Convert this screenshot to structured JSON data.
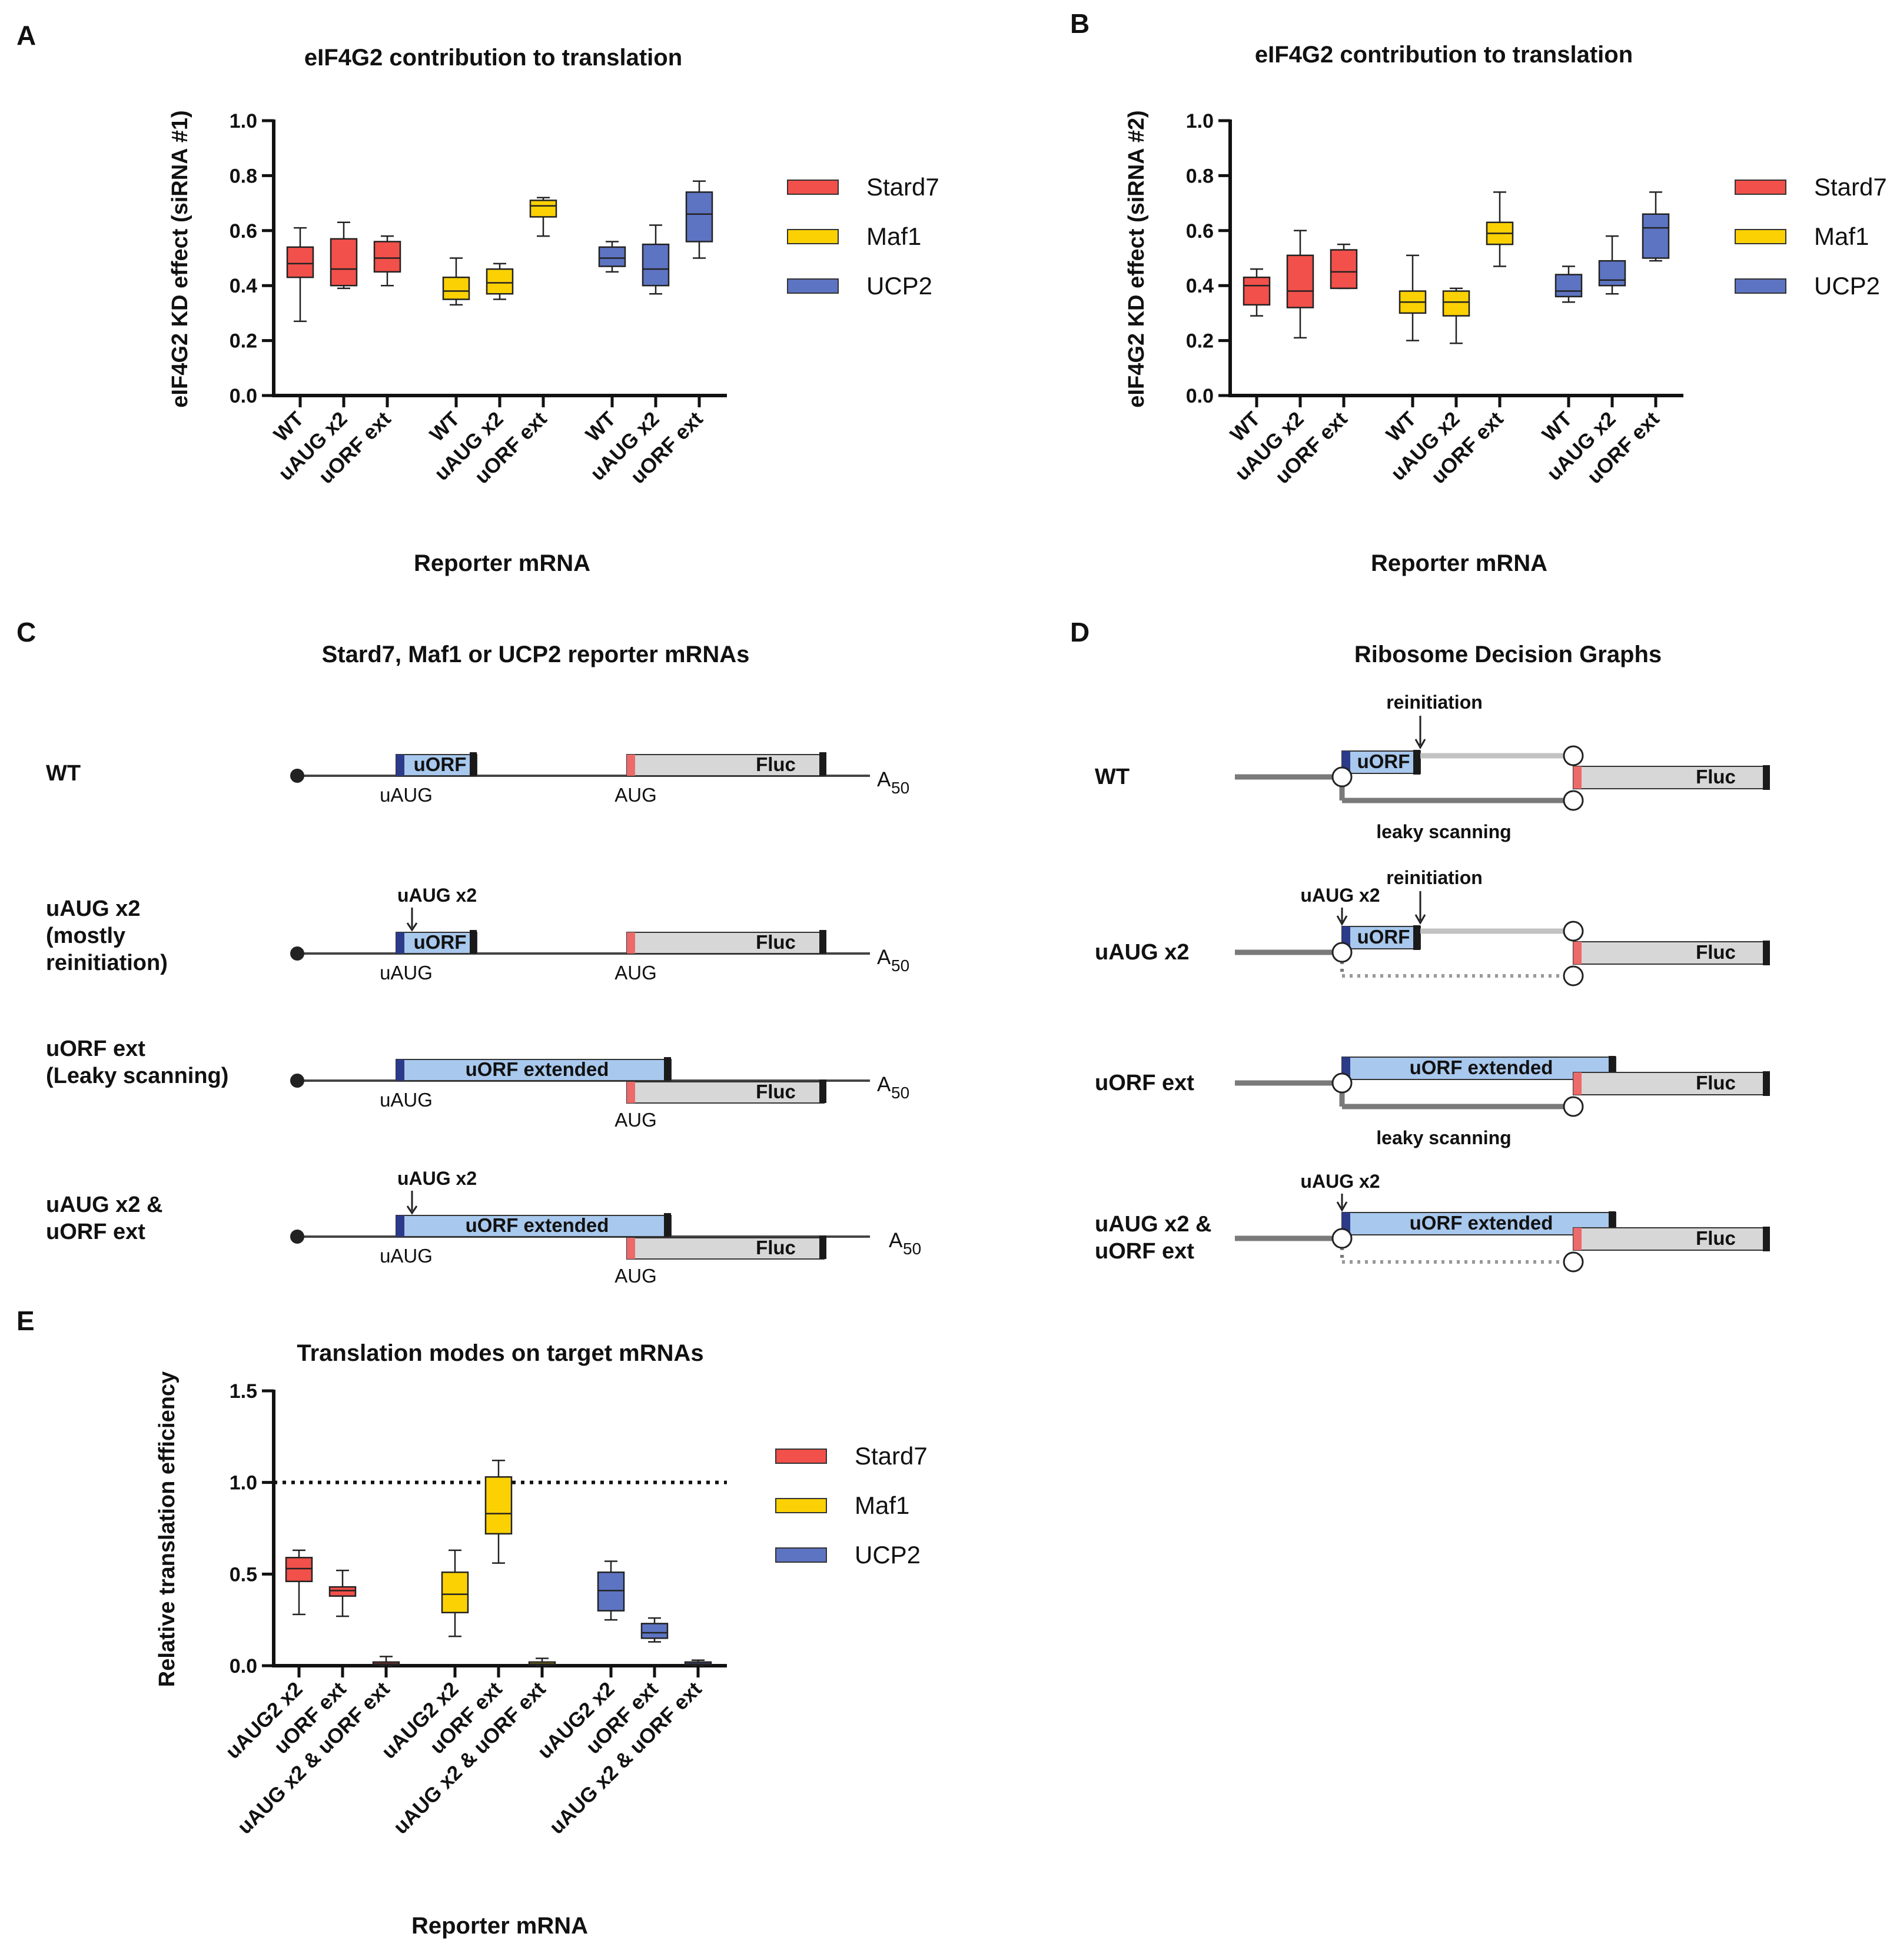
{
  "colors": {
    "Stard7": "#f2504a",
    "Maf1": "#fbd104",
    "UCP2": "#5d74c2",
    "uorf_fill": "#a8c8ed",
    "uorf_start": "#2c3a8a",
    "fluc_fill": "#d7d7d7",
    "aug_mark": "#ec6a6a",
    "stop_mark": "#1a1a1a",
    "line": "#444444",
    "graph_line": "#7a7a7a",
    "graph_light": "#c2c2c2"
  },
  "legend": [
    "Stard7",
    "Maf1",
    "UCP2"
  ],
  "panels": {
    "A": {
      "letter": "A",
      "title": "eIF4G2 contribution to translation",
      "xlabel": "Reporter mRNA"
    },
    "B": {
      "letter": "B",
      "title": "eIF4G2 contribution to translation",
      "xlabel": "Reporter mRNA"
    },
    "C": {
      "letter": "C",
      "title": "Stard7, Maf1 or UCP2 reporter mRNAs"
    },
    "D": {
      "letter": "D",
      "title": "Ribosome Decision Graphs"
    },
    "E": {
      "letter": "E",
      "title": "Translation modes on target mRNAs",
      "xlabel": "Reporter mRNA"
    }
  },
  "chart_data": [
    {
      "panel": "A",
      "type": "box",
      "title": "eIF4G2 contribution to translation",
      "xlabel": "Reporter mRNA",
      "ylabel": "eIF4G2 KD effect (siRNA #1)",
      "ylim": [
        0,
        1.0
      ],
      "yticks": [
        "0.0",
        "0.2",
        "0.4",
        "0.6",
        "0.8",
        "1.0"
      ],
      "groups": [
        {
          "name": "Stard7",
          "categories": [
            "WT",
            "uAUG x2",
            "uORF ext"
          ],
          "boxes": [
            [
              0.27,
              0.43,
              0.48,
              0.54,
              0.61
            ],
            [
              0.39,
              0.4,
              0.46,
              0.57,
              0.63
            ],
            [
              0.4,
              0.45,
              0.5,
              0.56,
              0.58
            ]
          ]
        },
        {
          "name": "Maf1",
          "categories": [
            "WT",
            "uAUG x2",
            "uORF ext"
          ],
          "boxes": [
            [
              0.33,
              0.35,
              0.38,
              0.43,
              0.5
            ],
            [
              0.35,
              0.37,
              0.41,
              0.46,
              0.48
            ],
            [
              0.58,
              0.65,
              0.69,
              0.71,
              0.72
            ]
          ]
        },
        {
          "name": "UCP2",
          "categories": [
            "WT",
            "uAUG x2",
            "uORF ext"
          ],
          "boxes": [
            [
              0.45,
              0.47,
              0.5,
              0.54,
              0.56
            ],
            [
              0.37,
              0.4,
              0.46,
              0.55,
              0.62
            ],
            [
              0.5,
              0.56,
              0.66,
              0.74,
              0.78
            ]
          ]
        }
      ]
    },
    {
      "panel": "B",
      "type": "box",
      "title": "eIF4G2 contribution to translation",
      "xlabel": "Reporter mRNA",
      "ylabel": "eIF4G2 KD effect (siRNA #2)",
      "ylim": [
        0,
        1.0
      ],
      "yticks": [
        "0.0",
        "0.2",
        "0.4",
        "0.6",
        "0.8",
        "1.0"
      ],
      "groups": [
        {
          "name": "Stard7",
          "categories": [
            "WT",
            "uAUG x2",
            "uORF ext"
          ],
          "boxes": [
            [
              0.29,
              0.33,
              0.4,
              0.43,
              0.46
            ],
            [
              0.21,
              0.32,
              0.38,
              0.51,
              0.6
            ],
            [
              0.39,
              0.39,
              0.45,
              0.53,
              0.55
            ]
          ]
        },
        {
          "name": "Maf1",
          "categories": [
            "WT",
            "uAUG x2",
            "uORF ext"
          ],
          "boxes": [
            [
              0.2,
              0.3,
              0.34,
              0.38,
              0.51
            ],
            [
              0.19,
              0.29,
              0.34,
              0.38,
              0.39
            ],
            [
              0.47,
              0.55,
              0.59,
              0.63,
              0.74
            ]
          ]
        },
        {
          "name": "UCP2",
          "categories": [
            "WT",
            "uAUG x2",
            "uORF ext"
          ],
          "boxes": [
            [
              0.34,
              0.36,
              0.38,
              0.44,
              0.47
            ],
            [
              0.37,
              0.4,
              0.42,
              0.49,
              0.58
            ],
            [
              0.49,
              0.5,
              0.61,
              0.66,
              0.74
            ]
          ]
        }
      ]
    },
    {
      "panel": "E",
      "type": "box",
      "title": "Translation modes on target mRNAs",
      "xlabel": "Reporter mRNA",
      "ylabel": "Relative translation efficiency",
      "ylim": [
        0,
        1.5
      ],
      "yticks": [
        "0.0",
        "0.5",
        "1.0",
        "1.5"
      ],
      "reference_line": 1.0,
      "groups": [
        {
          "name": "Stard7",
          "categories": [
            "uAUG2 x2",
            "uORF ext",
            "uAUG x2 & uORF ext"
          ],
          "boxes": [
            [
              0.28,
              0.46,
              0.53,
              0.59,
              0.63
            ],
            [
              0.27,
              0.38,
              0.41,
              0.43,
              0.52
            ],
            [
              0.0,
              0.005,
              0.01,
              0.02,
              0.05
            ]
          ]
        },
        {
          "name": "Maf1",
          "categories": [
            "uAUG2 x2",
            "uORF ext",
            "uAUG x2 & uORF ext"
          ],
          "boxes": [
            [
              0.16,
              0.29,
              0.39,
              0.51,
              0.63
            ],
            [
              0.56,
              0.72,
              0.83,
              1.03,
              1.12
            ],
            [
              0.0,
              0.005,
              0.01,
              0.02,
              0.04
            ]
          ]
        },
        {
          "name": "UCP2",
          "categories": [
            "uAUG2 x2",
            "uORF ext",
            "uAUG x2 & uORF ext"
          ],
          "boxes": [
            [
              0.25,
              0.3,
              0.41,
              0.51,
              0.57
            ],
            [
              0.13,
              0.15,
              0.18,
              0.23,
              0.26
            ],
            [
              0.0,
              0.005,
              0.01,
              0.02,
              0.03
            ]
          ]
        }
      ]
    }
  ],
  "panel_C": {
    "rows": [
      {
        "label": [
          "WT"
        ],
        "uorf": "uORF",
        "fluc": "Fluc",
        "uaug": "uAUG",
        "aug": "AUG",
        "polyA": "A",
        "polyA_sub": "50",
        "arrow": ""
      },
      {
        "label": [
          "uAUG x2",
          "(mostly",
          "reinitiation)"
        ],
        "uorf": "uORF",
        "fluc": "Fluc",
        "uaug": "uAUG",
        "aug": "AUG",
        "polyA": "A",
        "polyA_sub": "50",
        "arrow": "uAUG x2"
      },
      {
        "label": [
          "uORF ext",
          "(Leaky scanning)"
        ],
        "uorf": "uORF extended",
        "fluc": "Fluc",
        "uaug": "uAUG",
        "aug": "AUG",
        "polyA": "A",
        "polyA_sub": "50",
        "arrow": ""
      },
      {
        "label": [
          "uAUG x2 &",
          "uORF ext"
        ],
        "uorf": "uORF extended",
        "fluc": "Fluc",
        "uaug": "uAUG",
        "aug": "AUG",
        "polyA": "A",
        "polyA_sub": "50",
        "arrow": "uAUG x2"
      }
    ]
  },
  "panel_D": {
    "rows": [
      {
        "label": [
          "WT"
        ],
        "uorf": "uORF",
        "fluc": "Fluc",
        "top_note": "reinitiation",
        "arrow_note": "",
        "bottom_note": "leaky scanning"
      },
      {
        "label": [
          "uAUG x2"
        ],
        "uorf": "uORF",
        "fluc": "Fluc",
        "top_note": "reinitiation",
        "arrow_note": "uAUG x2",
        "bottom_note": ""
      },
      {
        "label": [
          "uORF ext"
        ],
        "uorf": "uORF extended",
        "fluc": "Fluc",
        "top_note": "",
        "arrow_note": "",
        "bottom_note": "leaky scanning"
      },
      {
        "label": [
          "uAUG x2 &",
          "uORF ext"
        ],
        "uorf": "uORF extended",
        "fluc": "Fluc",
        "top_note": "",
        "arrow_note": "uAUG x2",
        "bottom_note": ""
      }
    ]
  }
}
